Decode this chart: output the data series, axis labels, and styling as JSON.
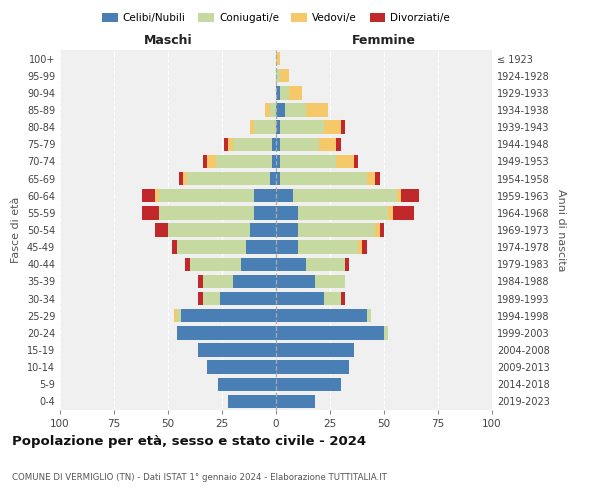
{
  "age_groups": [
    "0-4",
    "5-9",
    "10-14",
    "15-19",
    "20-24",
    "25-29",
    "30-34",
    "35-39",
    "40-44",
    "45-49",
    "50-54",
    "55-59",
    "60-64",
    "65-69",
    "70-74",
    "75-79",
    "80-84",
    "85-89",
    "90-94",
    "95-99",
    "100+"
  ],
  "birth_years": [
    "2019-2023",
    "2014-2018",
    "2009-2013",
    "2004-2008",
    "1999-2003",
    "1994-1998",
    "1989-1993",
    "1984-1988",
    "1979-1983",
    "1974-1978",
    "1969-1973",
    "1964-1968",
    "1959-1963",
    "1954-1958",
    "1949-1953",
    "1944-1948",
    "1939-1943",
    "1934-1938",
    "1929-1933",
    "1924-1928",
    "≤ 1923"
  ],
  "colors": {
    "celibi": "#4a7fb5",
    "coniugati": "#c5d9a0",
    "vedovi": "#f5c96a",
    "divorziati": "#c0282c"
  },
  "maschi": {
    "celibi": [
      22,
      27,
      32,
      36,
      46,
      44,
      26,
      20,
      16,
      14,
      12,
      10,
      10,
      3,
      2,
      2,
      0,
      0,
      0,
      0,
      0
    ],
    "coniugati": [
      0,
      0,
      0,
      0,
      0,
      2,
      8,
      14,
      24,
      32,
      38,
      44,
      44,
      38,
      26,
      18,
      10,
      3,
      0,
      0,
      0
    ],
    "vedovi": [
      0,
      0,
      0,
      0,
      0,
      1,
      0,
      0,
      0,
      0,
      0,
      0,
      2,
      2,
      4,
      2,
      2,
      2,
      0,
      0,
      0
    ],
    "divorziati": [
      0,
      0,
      0,
      0,
      0,
      0,
      2,
      2,
      2,
      2,
      6,
      8,
      6,
      2,
      2,
      2,
      0,
      0,
      0,
      0,
      0
    ]
  },
  "femmine": {
    "celibi": [
      18,
      30,
      34,
      36,
      50,
      42,
      22,
      18,
      14,
      10,
      10,
      10,
      8,
      2,
      2,
      2,
      2,
      4,
      2,
      0,
      0
    ],
    "coniugati": [
      0,
      0,
      0,
      0,
      2,
      2,
      8,
      14,
      18,
      28,
      36,
      42,
      48,
      40,
      26,
      18,
      20,
      10,
      4,
      2,
      0
    ],
    "vedovi": [
      0,
      0,
      0,
      0,
      0,
      0,
      0,
      0,
      0,
      2,
      2,
      2,
      2,
      4,
      8,
      8,
      8,
      10,
      6,
      4,
      2
    ],
    "divorziati": [
      0,
      0,
      0,
      0,
      0,
      0,
      2,
      0,
      2,
      2,
      2,
      10,
      8,
      2,
      2,
      2,
      2,
      0,
      0,
      0,
      0
    ]
  },
  "xlim": 100,
  "xtick_step": 25,
  "title": "Popolazione per età, sesso e stato civile - 2024",
  "subtitle": "COMUNE DI VERMIGLIO (TN) - Dati ISTAT 1° gennaio 2024 - Elaborazione TUTTITALIA.IT",
  "label_maschi": "Maschi",
  "label_femmine": "Femmine",
  "ylabel_left": "Fasce di età",
  "ylabel_right": "Anni di nascita",
  "legend_labels": [
    "Celibi/Nubili",
    "Coniugati/e",
    "Vedovi/e",
    "Divorziati/e"
  ],
  "bg_color": "#ffffff",
  "plot_bg_color": "#f0f0f0",
  "grid_color": "#ffffff",
  "bar_height": 0.78
}
